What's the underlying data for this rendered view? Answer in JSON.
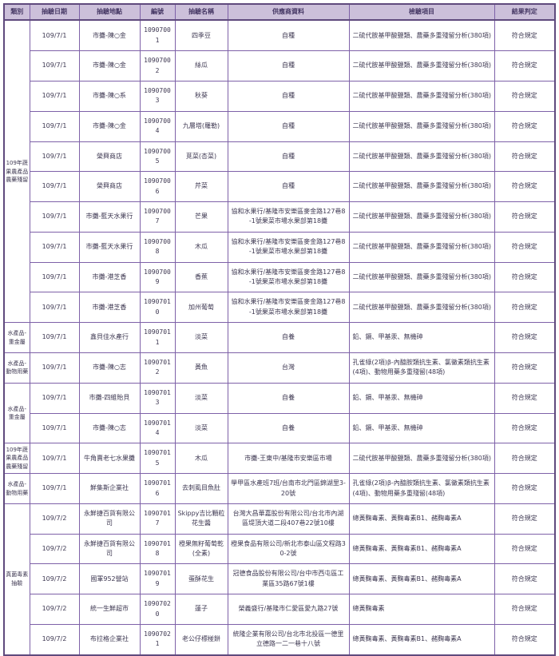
{
  "colors": {
    "border": "#7e61a8",
    "border_heavy": "#5f4a7d",
    "header_bg": "#ccc0da",
    "header_text": "#453764",
    "body_text": "#3e3852"
  },
  "table": {
    "headers": [
      "類別",
      "抽驗日期",
      "抽驗地點",
      "編號",
      "抽驗名稱",
      "供應商資料",
      "檢驗項目",
      "結果判定"
    ],
    "category_groups": [
      {
        "label": "109年蔬果農產品農藥殘留",
        "span": 10
      },
      {
        "label": "水產品-重金屬",
        "span": 1
      },
      {
        "label": "水產品-動物用藥",
        "span": 1
      },
      {
        "label": "水產品-重金屬",
        "span": 2
      },
      {
        "label": "109年蔬果農產品農藥殘留",
        "span": 1
      },
      {
        "label": "水產品-動物用藥",
        "span": 1
      },
      {
        "label": "真菌毒素抽驗",
        "span": 5
      }
    ],
    "rows": [
      {
        "date": "109/7/1",
        "location": "市攤-陳○金",
        "id": "10907001",
        "name": "四季豆",
        "supplier": "自種",
        "tests": "二硫代胺基甲酸鹽類、農藥多重殘留分析(380項)",
        "result": "符合規定"
      },
      {
        "date": "109/7/1",
        "location": "市攤-陳○金",
        "id": "10907002",
        "name": "絲瓜",
        "supplier": "自種",
        "tests": "二硫代胺基甲酸鹽類、農藥多重殘留分析(380項)",
        "result": "符合規定"
      },
      {
        "date": "109/7/1",
        "location": "市攤-陳○系",
        "id": "10907003",
        "name": "秋葵",
        "supplier": "自種",
        "tests": "二硫代胺基甲酸鹽類、農藥多重殘留分析(380項)",
        "result": "符合規定"
      },
      {
        "date": "109/7/1",
        "location": "市攤-陳○金",
        "id": "10907004",
        "name": "九層塔(羅勒)",
        "supplier": "自種",
        "tests": "二硫代胺基甲酸鹽類、農藥多重殘留分析(380項)",
        "result": "符合規定"
      },
      {
        "date": "109/7/1",
        "location": "榮興商店",
        "id": "10907005",
        "name": "莧菜(杏菜)",
        "supplier": "自種",
        "tests": "二硫代胺基甲酸鹽類、農藥多重殘留分析(380項)",
        "result": "符合規定"
      },
      {
        "date": "109/7/1",
        "location": "榮興商店",
        "id": "10907006",
        "name": "芹菜",
        "supplier": "自種",
        "tests": "二硫代胺基甲酸鹽類、農藥多重殘留分析(380項)",
        "result": "符合規定"
      },
      {
        "date": "109/7/1",
        "location": "市攤-藍天水果行",
        "id": "10907007",
        "name": "芒果",
        "supplier": "協和水果行/基隆市安樂區麥金路127巷8-1號果菜市場水果部第18攤",
        "tests": "二硫代胺基甲酸鹽類、農藥多重殘留分析(380項)",
        "result": "符合規定"
      },
      {
        "date": "109/7/1",
        "location": "市攤-藍天水果行",
        "id": "10907008",
        "name": "木瓜",
        "supplier": "協和水果行/基隆市安樂區麥金路127巷8-1號果菜市場水果部第18攤",
        "tests": "二硫代胺基甲酸鹽類、農藥多重殘留分析(380項)",
        "result": "符合規定"
      },
      {
        "date": "109/7/1",
        "location": "市攤-港芝香",
        "id": "10907009",
        "name": "香蕉",
        "supplier": "協和水果行/基隆市安樂區麥金路127巷8-1號果菜市場水果部第18攤",
        "tests": "二硫代胺基甲酸鹽類、農藥多重殘留分析(380項)",
        "result": "符合規定"
      },
      {
        "date": "109/7/1",
        "location": "市攤-港芝香",
        "id": "10907010",
        "name": "加州葡萄",
        "supplier": "協和水果行/基隆市安樂區麥金路127巷8-1號果菜市場水果部第18攤",
        "tests": "二硫代胺基甲酸鹽類、農藥多重殘留分析(380項)",
        "result": "符合規定"
      },
      {
        "date": "109/7/1",
        "location": "鑫貝佳水產行",
        "id": "10907011",
        "name": "淡菜",
        "supplier": "自養",
        "tests": "鉛、鎘、甲基汞、無機砷",
        "result": "符合規定"
      },
      {
        "date": "109/7/1",
        "location": "市攤-陳○志",
        "id": "10907012",
        "name": "黃魚",
        "supplier": "台灣",
        "tests": "孔雀綠(2項)β-內醯胺類抗生素、氯黴素類抗生素(4項)、動物用藥多重殘留(48項)",
        "result": "符合規定"
      },
      {
        "date": "109/7/1",
        "location": "市攤-四維貽貝",
        "id": "10907013",
        "name": "淡菜",
        "supplier": "自養",
        "tests": "鉛、鎘、甲基汞、無機砷",
        "result": "符合規定"
      },
      {
        "date": "109/7/1",
        "location": "市攤-陳○志",
        "id": "10907014",
        "name": "淡菜",
        "supplier": "自養",
        "tests": "鉛、鎘、甲基汞、無機砷",
        "result": "符合規定"
      },
      {
        "date": "109/7/1",
        "location": "牛角賣老七水果攤",
        "id": "10907015",
        "name": "木瓜",
        "supplier": "市攤-王東中/基隆市安樂區市場",
        "tests": "二硫代胺基甲酸鹽類、農藥多重殘留分析(380項)",
        "result": "符合規定"
      },
      {
        "date": "109/7/1",
        "location": "鮮集斯企業社",
        "id": "10907016",
        "name": "去刺虱目魚肚",
        "supplier": "學甲區水產班7班/台南市北門區錦湖里3-20號",
        "tests": "孔雀綠(2項)β-內醯胺類抗生素、氯黴素類抗生素(4項)、動物用藥多重殘留(48項)",
        "result": "符合規定"
      },
      {
        "date": "109/7/2",
        "location": "永鮮捷百貨有限公司",
        "id": "10907017",
        "name": "Skippy吉比顆粒花生醬",
        "supplier": "台灣大昌華嘉股份有限公司/台北市內湖區堤頂大道二段407巷22號10樓",
        "tests": "總黃麴毒素、黃麴毒素B1、赭麴毒素A",
        "result": "符合規定"
      },
      {
        "date": "109/7/2",
        "location": "永鮮捷百貨有限公司",
        "id": "10907018",
        "name": "橙果無籽葡萄乾(全素)",
        "supplier": "橙果食品有限公司/新北市泰山區文程路30-2號",
        "tests": "總黃麴毒素、黃麴毒素B1、赭麴毒素A",
        "result": "符合規定"
      },
      {
        "date": "109/7/2",
        "location": "國軍952營站",
        "id": "10907019",
        "name": "蛋酥花生",
        "supplier": "冠德食品股份有限公司/台中市西屯區工業區35路67號1樓",
        "tests": "總黃麴毒素、黃麴毒素B1、赭麴毒素A",
        "result": "符合規定"
      },
      {
        "date": "109/7/2",
        "location": "統一生鮮超市",
        "id": "10907020",
        "name": "蓮子",
        "supplier": "榮義盛行/基隆市仁愛區愛九路27號",
        "tests": "總黃麴毒素",
        "result": "符合規定"
      },
      {
        "date": "109/7/2",
        "location": "布拉格企業社",
        "id": "10907021",
        "name": "老公仔標椪餅",
        "supplier": "統隆企業有限公司/台北市北投區一德里立德路一二一巷十八號",
        "tests": "總黃麴毒素、黃麴毒素B1、赭麴毒素A",
        "result": "符合規定"
      }
    ]
  }
}
